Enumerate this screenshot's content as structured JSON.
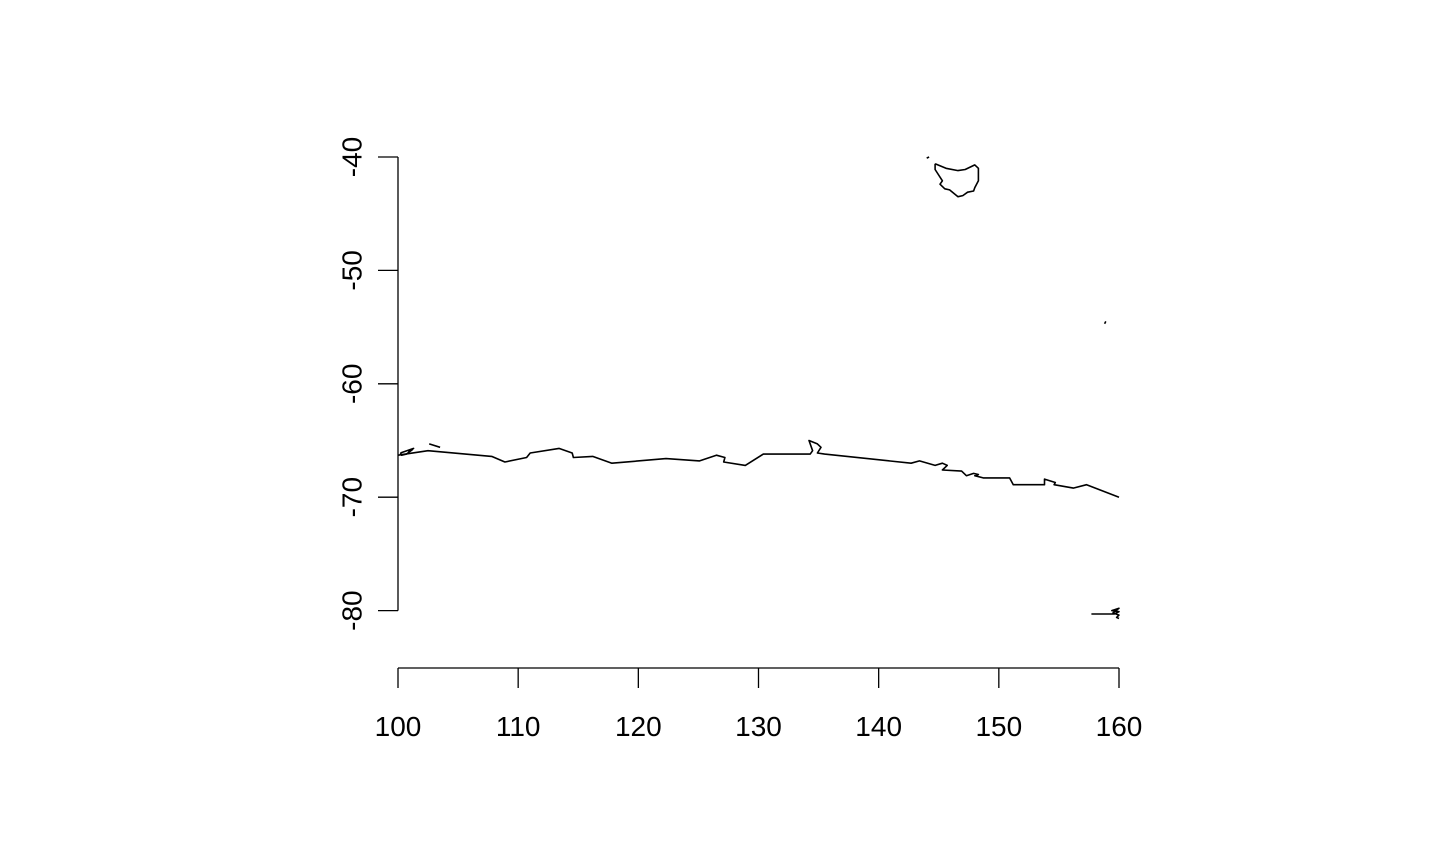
{
  "chart_data": {
    "type": "map",
    "title": "",
    "xlabel": "",
    "ylabel": "",
    "xlim": [
      100,
      160
    ],
    "ylim": [
      -85,
      -40
    ],
    "x_ticks": [
      100,
      110,
      120,
      130,
      140,
      150,
      160
    ],
    "y_ticks": [
      -40,
      -50,
      -60,
      -70,
      -80
    ],
    "x_tick_labels": [
      "100",
      "110",
      "120",
      "130",
      "140",
      "150",
      "160"
    ],
    "y_tick_labels": [
      "-40",
      "-50",
      "-60",
      "-70",
      "-80"
    ],
    "features": [
      {
        "name": "antarctic-coastline",
        "points": [
          [
            100,
            -66.3
          ],
          [
            102.5,
            -65.9
          ],
          [
            107.8,
            -66.4
          ],
          [
            108.9,
            -66.9
          ],
          [
            110.7,
            -66.5
          ],
          [
            111,
            -66.1
          ],
          [
            113.4,
            -65.7
          ],
          [
            114.5,
            -66.1
          ],
          [
            114.6,
            -66.5
          ],
          [
            116.2,
            -66.4
          ],
          [
            117.8,
            -67.0
          ],
          [
            122.3,
            -66.6
          ],
          [
            125.1,
            -66.8
          ],
          [
            126.5,
            -66.3
          ],
          [
            127.2,
            -66.5
          ],
          [
            127.1,
            -66.9
          ],
          [
            128.9,
            -67.2
          ],
          [
            130.4,
            -66.2
          ],
          [
            134.3,
            -66.2
          ],
          [
            134.5,
            -65.9
          ],
          [
            134.2,
            -65.0
          ],
          [
            134.9,
            -65.3
          ],
          [
            135.2,
            -65.6
          ],
          [
            134.9,
            -66.1
          ],
          [
            135.5,
            -66.2
          ],
          [
            142.7,
            -67.0
          ],
          [
            143.4,
            -66.8
          ],
          [
            144.7,
            -67.2
          ],
          [
            145.3,
            -67.0
          ],
          [
            145.7,
            -67.2
          ],
          [
            145.3,
            -67.6
          ],
          [
            146.9,
            -67.7
          ],
          [
            147.3,
            -68.1
          ],
          [
            147.9,
            -67.9
          ],
          [
            148.3,
            -68.0
          ],
          [
            148.0,
            -68.1
          ],
          [
            148.7,
            -68.3
          ],
          [
            150.9,
            -68.3
          ],
          [
            151.2,
            -68.9
          ],
          [
            153.8,
            -68.9
          ],
          [
            153.8,
            -68.4
          ],
          [
            154.7,
            -68.7
          ],
          [
            154.6,
            -68.9
          ],
          [
            156.2,
            -69.2
          ],
          [
            157.3,
            -68.9
          ],
          [
            160,
            -70.0
          ]
        ]
      },
      {
        "name": "antarctic-island-west",
        "points": [
          [
            100.2,
            -66.1
          ],
          [
            101.3,
            -65.7
          ],
          [
            100.9,
            -66.0
          ],
          [
            101.2,
            -65.8
          ],
          [
            100.7,
            -66.2
          ],
          [
            100.3,
            -66.3
          ],
          [
            100.2,
            -66.1
          ]
        ]
      },
      {
        "name": "antarctic-island-west-2",
        "points": [
          [
            102.6,
            -65.3
          ],
          [
            103.5,
            -65.6
          ]
        ]
      },
      {
        "name": "tasmania",
        "points": [
          [
            144.7,
            -40.6
          ],
          [
            144.7,
            -41.1
          ],
          [
            145.3,
            -42.1
          ],
          [
            145.1,
            -42.4
          ],
          [
            145.5,
            -42.8
          ],
          [
            145.9,
            -42.9
          ],
          [
            146.6,
            -43.5
          ],
          [
            147.0,
            -43.4
          ],
          [
            147.4,
            -43.1
          ],
          [
            147.9,
            -43.0
          ],
          [
            148.0,
            -42.7
          ],
          [
            148.3,
            -42.1
          ],
          [
            148.3,
            -41.0
          ],
          [
            148.0,
            -40.7
          ],
          [
            147.2,
            -41.1
          ],
          [
            146.6,
            -41.2
          ],
          [
            145.6,
            -41.0
          ],
          [
            144.7,
            -40.6
          ]
        ]
      },
      {
        "name": "tasmania-islet",
        "points": [
          [
            144.0,
            -40.1
          ],
          [
            144.2,
            -40.0
          ]
        ]
      },
      {
        "name": "macquarie-island",
        "points": [
          [
            158.8,
            -54.7
          ],
          [
            158.9,
            -54.5
          ]
        ]
      },
      {
        "name": "ross-ice-shelf-edge",
        "points": [
          [
            157.7,
            -80.3
          ],
          [
            159.6,
            -80.3
          ],
          [
            160,
            -80.1
          ],
          [
            159.4,
            -80.0
          ],
          [
            160,
            -79.8
          ],
          [
            159.5,
            -80.2
          ],
          [
            160,
            -80.4
          ],
          [
            159.8,
            -80.6
          ],
          [
            160,
            -80.7
          ]
        ]
      }
    ]
  }
}
